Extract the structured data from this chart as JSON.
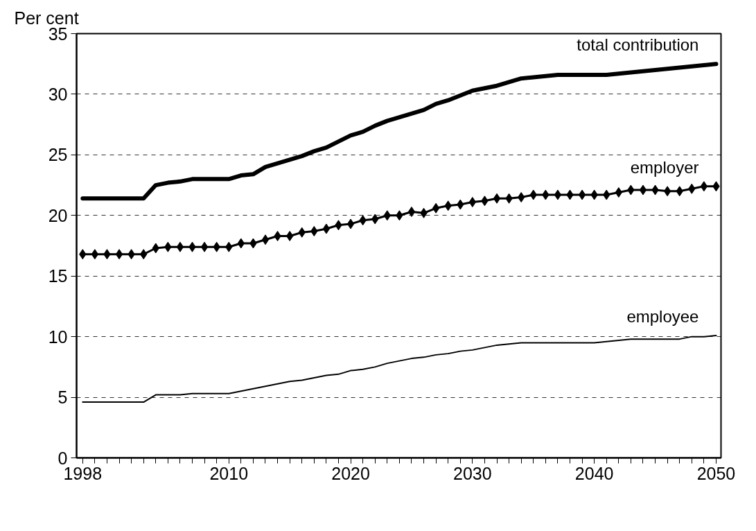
{
  "chart_data": {
    "type": "line",
    "ylabel": "Per cent",
    "x": [
      1998,
      1999,
      2000,
      2001,
      2002,
      2003,
      2004,
      2005,
      2006,
      2007,
      2008,
      2009,
      2010,
      2011,
      2012,
      2013,
      2014,
      2015,
      2016,
      2017,
      2018,
      2019,
      2020,
      2021,
      2022,
      2023,
      2024,
      2025,
      2026,
      2027,
      2028,
      2029,
      2030,
      2031,
      2032,
      2033,
      2034,
      2035,
      2036,
      2037,
      2038,
      2039,
      2040,
      2041,
      2042,
      2043,
      2044,
      2045,
      2046,
      2047,
      2048,
      2049,
      2050
    ],
    "series": [
      {
        "name": "total contribution",
        "color": "#000000",
        "marker": "none",
        "values": [
          21.4,
          21.4,
          21.4,
          21.4,
          21.4,
          21.4,
          22.5,
          22.7,
          22.8,
          23.0,
          23.0,
          23.0,
          23.0,
          23.3,
          23.4,
          24.0,
          24.3,
          24.6,
          24.9,
          25.3,
          25.6,
          26.1,
          26.6,
          26.9,
          27.4,
          27.8,
          28.1,
          28.4,
          28.7,
          29.2,
          29.5,
          29.9,
          30.3,
          30.5,
          30.7,
          31.0,
          31.3,
          31.4,
          31.5,
          31.6,
          31.6,
          31.6,
          31.6,
          31.6,
          31.7,
          31.8,
          31.9,
          32.0,
          32.1,
          32.2,
          32.3,
          32.4,
          32.5
        ]
      },
      {
        "name": "employer",
        "color": "#000000",
        "marker": "diamond",
        "values": [
          16.8,
          16.8,
          16.8,
          16.8,
          16.8,
          16.8,
          17.3,
          17.4,
          17.4,
          17.4,
          17.4,
          17.4,
          17.4,
          17.7,
          17.7,
          18.0,
          18.3,
          18.3,
          18.6,
          18.7,
          18.9,
          19.2,
          19.3,
          19.6,
          19.7,
          20.0,
          20.0,
          20.3,
          20.2,
          20.6,
          20.8,
          20.9,
          21.1,
          21.2,
          21.4,
          21.4,
          21.5,
          21.7,
          21.7,
          21.7,
          21.7,
          21.7,
          21.7,
          21.7,
          21.9,
          22.1,
          22.1,
          22.1,
          22.0,
          22.0,
          22.2,
          22.4,
          22.4
        ]
      },
      {
        "name": "employee",
        "color": "#000000",
        "marker": "none",
        "values": [
          4.6,
          4.6,
          4.6,
          4.6,
          4.6,
          4.6,
          5.2,
          5.2,
          5.2,
          5.3,
          5.3,
          5.3,
          5.3,
          5.5,
          5.7,
          5.9,
          6.1,
          6.3,
          6.4,
          6.6,
          6.8,
          6.9,
          7.2,
          7.3,
          7.5,
          7.8,
          8.0,
          8.2,
          8.3,
          8.5,
          8.6,
          8.8,
          8.9,
          9.1,
          9.3,
          9.4,
          9.5,
          9.5,
          9.5,
          9.5,
          9.5,
          9.5,
          9.5,
          9.6,
          9.7,
          9.8,
          9.8,
          9.8,
          9.8,
          9.8,
          10.0,
          10.0,
          10.1
        ]
      }
    ],
    "xlim": [
      1997.5,
      2050.4
    ],
    "xticks": [
      1998,
      2010,
      2020,
      2030,
      2040,
      2050
    ],
    "ylim": [
      0,
      35
    ],
    "yticks": [
      0,
      5,
      10,
      15,
      20,
      25,
      30,
      35
    ],
    "grid": "y"
  }
}
